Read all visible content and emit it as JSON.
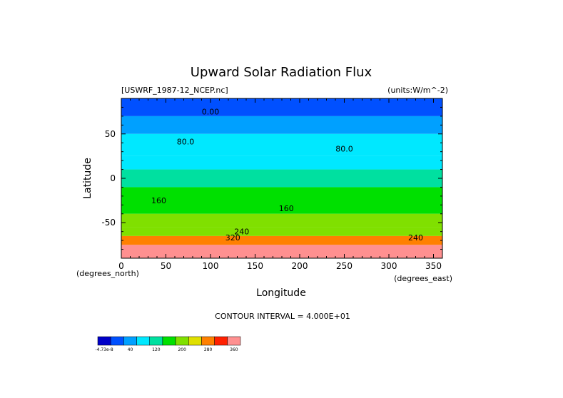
{
  "chart_data": {
    "type": "heatmap",
    "title": "Upward Solar Radiation Flux",
    "source_label": "[USWRF_1987-12_NCEP.nc]",
    "units_label": "(units:W/m^-2)",
    "xlabel": "Longitude",
    "ylabel": "Latitude",
    "x_unit_label": "(degrees_east)",
    "y_unit_label": "(degrees_north)",
    "xlim": [
      0,
      360
    ],
    "ylim": [
      -90,
      90
    ],
    "x_ticks": [
      0,
      50,
      100,
      150,
      200,
      250,
      300,
      350
    ],
    "y_ticks": [
      50,
      0,
      -50
    ],
    "contour_interval_label": "CONTOUR INTERVAL = 4.000E+01",
    "contour_labels": [
      {
        "text": "0.00",
        "lon": 100,
        "lat": 72
      },
      {
        "text": "80.0",
        "lon": 72,
        "lat": 38
      },
      {
        "text": "80.0",
        "lon": 250,
        "lat": 30
      },
      {
        "text": "160",
        "lon": 42,
        "lat": -28
      },
      {
        "text": "160",
        "lon": 185,
        "lat": -37
      },
      {
        "text": "240",
        "lon": 135,
        "lat": -63
      },
      {
        "text": "320",
        "lon": 125,
        "lat": -70
      },
      {
        "text": "240",
        "lon": 330,
        "lat": -70
      }
    ],
    "lat_bands": [
      {
        "lat_top": 90,
        "lat_bottom": 70,
        "value": -0.0
      },
      {
        "lat_top": 70,
        "lat_bottom": 50,
        "value": 40
      },
      {
        "lat_top": 50,
        "lat_bottom": 25,
        "value": 80
      },
      {
        "lat_top": 25,
        "lat_bottom": 10,
        "value": 100
      },
      {
        "lat_top": 10,
        "lat_bottom": -10,
        "value": 140
      },
      {
        "lat_top": -10,
        "lat_bottom": -40,
        "value": 170
      },
      {
        "lat_top": -40,
        "lat_bottom": -55,
        "value": 200
      },
      {
        "lat_top": -55,
        "lat_bottom": -65,
        "value": 220
      },
      {
        "lat_top": -65,
        "lat_bottom": -75,
        "value": 300
      },
      {
        "lat_top": -75,
        "lat_bottom": -90,
        "value": 380
      }
    ],
    "colorbar": {
      "colors": [
        "#0000c8",
        "#0050ff",
        "#00a0ff",
        "#00e8ff",
        "#00e0a0",
        "#00e000",
        "#80e000",
        "#e0e000",
        "#ff8000",
        "#ff2000",
        "#ff9090"
      ],
      "labels": [
        "-4.73e-8",
        "40",
        "120",
        "200",
        "280",
        "360"
      ]
    }
  }
}
